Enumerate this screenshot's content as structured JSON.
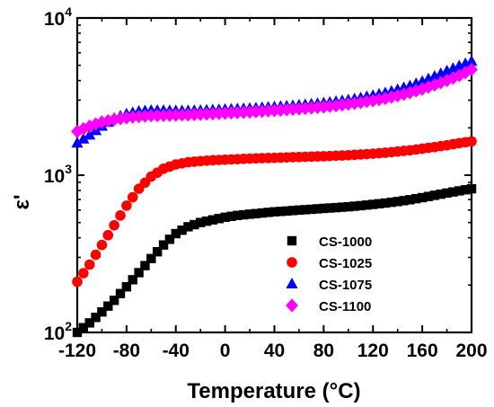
{
  "chart_data": {
    "type": "scatter",
    "xlabel": "Temperature (°C)",
    "ylabel": "ε'",
    "xlim": [
      -120,
      200
    ],
    "ylim": [
      100,
      10000
    ],
    "y_scale": "log",
    "x_ticks": [
      -120,
      -80,
      -40,
      0,
      40,
      80,
      120,
      160,
      200
    ],
    "x_tick_labels": [
      "-120",
      "-80",
      "-40",
      "0",
      "40",
      "80",
      "120",
      "160",
      "200"
    ],
    "y_ticks": [
      {
        "value": 100,
        "base": "10",
        "exp": "2"
      },
      {
        "value": 1000,
        "base": "10",
        "exp": "3"
      },
      {
        "value": 10000,
        "base": "10",
        "exp": "4"
      }
    ],
    "grid": false,
    "legend_position": "lower-right",
    "series": [
      {
        "name": "CS-1000",
        "marker": "square",
        "color": "#000000",
        "x": [
          -120,
          -110,
          -100,
          -90,
          -80,
          -70,
          -60,
          -50,
          -40,
          -30,
          -20,
          -10,
          0,
          10,
          20,
          30,
          40,
          50,
          60,
          70,
          80,
          90,
          100,
          110,
          120,
          130,
          140,
          150,
          160,
          170,
          180,
          190,
          200
        ],
        "y": [
          100,
          115,
          135,
          160,
          195,
          240,
          295,
          360,
          425,
          470,
          500,
          520,
          540,
          555,
          565,
          575,
          585,
          592,
          600,
          607,
          615,
          622,
          630,
          640,
          652,
          665,
          680,
          698,
          720,
          745,
          770,
          795,
          820
        ]
      },
      {
        "name": "CS-1025",
        "marker": "circle",
        "color": "#ff0000",
        "x": [
          -120,
          -110,
          -100,
          -90,
          -80,
          -70,
          -60,
          -50,
          -40,
          -30,
          -20,
          -10,
          0,
          10,
          20,
          30,
          40,
          50,
          60,
          70,
          80,
          90,
          100,
          110,
          120,
          130,
          140,
          150,
          160,
          170,
          180,
          190,
          200
        ],
        "y": [
          210,
          270,
          360,
          480,
          640,
          820,
          980,
          1100,
          1170,
          1210,
          1230,
          1245,
          1255,
          1265,
          1275,
          1283,
          1290,
          1298,
          1305,
          1313,
          1320,
          1330,
          1340,
          1355,
          1370,
          1390,
          1415,
          1440,
          1475,
          1510,
          1550,
          1600,
          1640
        ]
      },
      {
        "name": "CS-1075",
        "marker": "triangle",
        "color": "#0000ff",
        "x": [
          -120,
          -110,
          -100,
          -90,
          -80,
          -70,
          -60,
          -50,
          -40,
          -30,
          -20,
          -10,
          0,
          10,
          20,
          30,
          40,
          50,
          60,
          70,
          80,
          90,
          100,
          110,
          120,
          130,
          140,
          150,
          160,
          170,
          180,
          190,
          200
        ],
        "y": [
          1600,
          1800,
          2050,
          2300,
          2450,
          2550,
          2580,
          2580,
          2570,
          2570,
          2580,
          2600,
          2620,
          2640,
          2660,
          2690,
          2720,
          2750,
          2790,
          2830,
          2880,
          2940,
          3010,
          3100,
          3210,
          3340,
          3500,
          3700,
          3950,
          4250,
          4600,
          4950,
          5300
        ]
      },
      {
        "name": "CS-1100",
        "marker": "diamond",
        "color": "#ff00ff",
        "x": [
          -120,
          -110,
          -100,
          -90,
          -80,
          -70,
          -60,
          -50,
          -40,
          -30,
          -20,
          -10,
          0,
          10,
          20,
          30,
          40,
          50,
          60,
          70,
          80,
          90,
          100,
          110,
          120,
          130,
          140,
          150,
          160,
          170,
          180,
          190,
          200
        ],
        "y": [
          1900,
          2050,
          2180,
          2260,
          2320,
          2360,
          2390,
          2400,
          2410,
          2420,
          2440,
          2460,
          2480,
          2500,
          2520,
          2550,
          2580,
          2610,
          2640,
          2680,
          2720,
          2770,
          2830,
          2900,
          2980,
          3080,
          3200,
          3350,
          3530,
          3750,
          4000,
          4300,
          4700
        ]
      }
    ]
  }
}
